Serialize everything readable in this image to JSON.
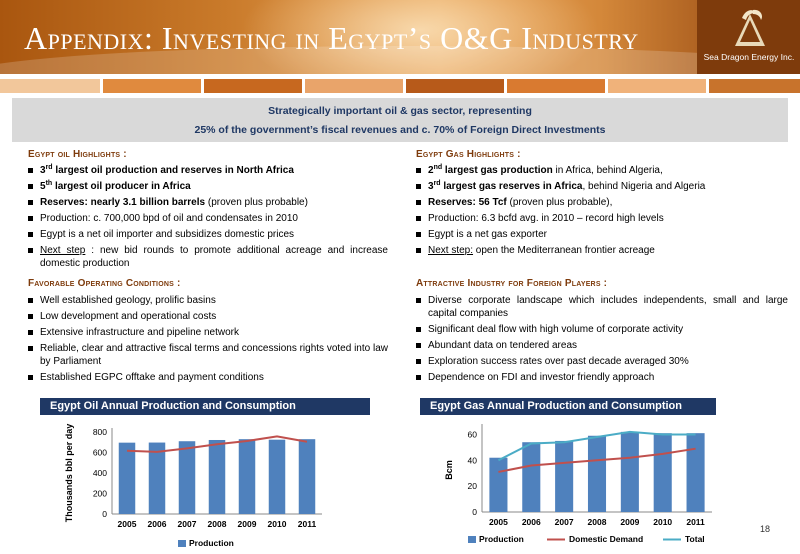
{
  "header": {
    "title": "Appendix: Investing in Egypt’s O&G Industry",
    "logo_text": "Sea Dragon Energy Inc."
  },
  "banner": {
    "line1": "Strategically important oil & gas sector, representing",
    "line2": "25% of the government’s fiscal revenues and c. 70% of Foreign Direct Investments"
  },
  "oil": {
    "title": "Egypt oil Highlights :",
    "items": [
      {
        "sup_num": "3",
        "sup": "rd",
        "bold": " largest oil production and reserves in North Africa",
        "rest": ""
      },
      {
        "sup_num": "5",
        "sup": "th",
        "bold": " largest oil producer in Africa",
        "rest": ""
      },
      {
        "bold": "Reserves: nearly 3.1 billion barrels",
        "rest": " (proven plus probable)"
      },
      {
        "text": "Production: c. 700,000 bpd of oil and condensates in 2010"
      },
      {
        "text": "Egypt is a net oil importer and subsidizes domestic prices"
      },
      {
        "u": "Next step",
        "rest": " : new bid rounds to promote additional acreage and increase domestic production"
      }
    ]
  },
  "gas": {
    "title": "Egypt Gas Highlights :",
    "items": [
      {
        "sup_num": "2",
        "sup": "nd",
        "bold": " largest gas production",
        "rest": " in Africa, behind Algeria,"
      },
      {
        "sup_num": "3",
        "sup": "rd",
        "bold": " largest gas reserves in Africa",
        "rest": ", behind Nigeria and Algeria"
      },
      {
        "bold": "Reserves: 56 Tcf",
        "rest": " (proven plus probable),"
      },
      {
        "text": "Production: 6.3 bcfd avg. in 2010 – record high levels"
      },
      {
        "text": "Egypt is a net gas exporter"
      },
      {
        "u": "Next step:",
        "rest": " open the Mediterranean frontier acreage"
      }
    ]
  },
  "conditions": {
    "title": "Favorable Operating Conditions :",
    "items": [
      "Well established geology, prolific basins",
      "Low development and operational costs",
      "Extensive infrastructure and pipeline network",
      "Reliable, clear and attractive fiscal terms and concessions rights voted into law by Parliament",
      "Established EGPC offtake and payment conditions"
    ]
  },
  "industry": {
    "title": "Attractive Industry for Foreign Players :",
    "items": [
      "Diverse corporate landscape which includes independents, small and large capital companies",
      "Significant deal flow with  high volume of corporate activity",
      "Abundant data on tendered areas",
      "Exploration success rates over past decade averaged 30%",
      "Dependence on FDI and investor friendly approach"
    ]
  },
  "page_number": "18",
  "colors": {
    "bar": "#4f81bd",
    "demand": "#c0504d",
    "total": "#4bacc6",
    "navy": "#1f3864",
    "brown": "#7e3b0c"
  },
  "chart_data": [
    {
      "type": "bar",
      "title": "Egypt Oil Annual Production and Consumption",
      "categories": [
        "2005",
        "2006",
        "2007",
        "2008",
        "2009",
        "2010",
        "2011"
      ],
      "series": [
        {
          "name": "Production",
          "kind": "bar",
          "values": [
            696,
            697,
            710,
            722,
            730,
            725,
            730
          ]
        },
        {
          "name": "",
          "kind": "line",
          "values": [
            617,
            606,
            640,
            680,
            712,
            757,
            705
          ]
        }
      ],
      "ylabel": "Thousands bbl per day",
      "yticks": [
        0,
        200,
        400,
        600,
        800
      ],
      "ylim": [
        0,
        800
      ],
      "legend": "bottom"
    },
    {
      "type": "bar",
      "title": "Egypt Gas Annual Production and Consumption",
      "categories": [
        "2005",
        "2006",
        "2007",
        "2008",
        "2009",
        "2010",
        "2011"
      ],
      "series": [
        {
          "name": "Production",
          "kind": "bar",
          "values": [
            42,
            54,
            55,
            59,
            62,
            61,
            61
          ]
        },
        {
          "name": "Domestic Demand",
          "kind": "line",
          "values": [
            31,
            36,
            38,
            40,
            42,
            45,
            49
          ]
        },
        {
          "name": "Total",
          "kind": "line",
          "values": [
            40,
            53,
            54,
            58,
            62,
            60,
            60
          ]
        }
      ],
      "ylabel": "Bcm",
      "yticks": [
        0,
        20,
        40,
        60
      ],
      "ylim": [
        0,
        65
      ],
      "legend": "bottom"
    }
  ]
}
